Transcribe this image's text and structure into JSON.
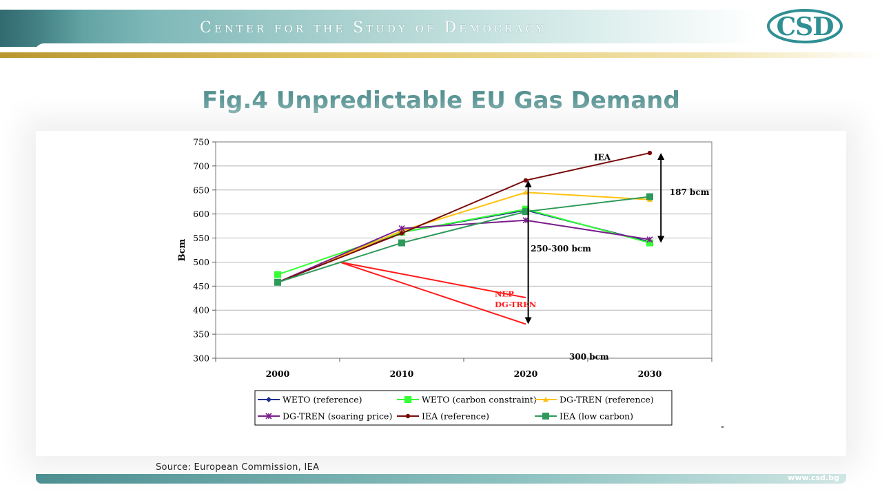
{
  "header": {
    "org_name": "Center for the Study of Democracy",
    "logo_text": "CSD"
  },
  "slide": {
    "title": "Fig.4 Unpredictable EU Gas Demand",
    "source": "Source: European Commission, IEA",
    "footer_url": "www.csd.bg",
    "stray_mark": "-"
  },
  "chart_data": {
    "type": "line",
    "title": "",
    "xlabel": "",
    "ylabel": "Bcm",
    "x": [
      2000,
      2010,
      2020,
      2030
    ],
    "x_ticks": [
      "2000",
      "2010",
      "2020",
      "2030"
    ],
    "y_ticks": [
      "750",
      "700",
      "650",
      "600",
      "550",
      "500",
      "450",
      "400",
      "350",
      "300"
    ],
    "ylim": [
      300,
      750
    ],
    "grid": true,
    "legend_placement": "bottom",
    "series": [
      {
        "name": "WETO (reference)",
        "color": "#1f2f8f",
        "marker": "diamond",
        "values": [
          458,
          562,
          608,
          542
        ]
      },
      {
        "name": "WETO (carbon constraint)",
        "color": "#33ff33",
        "marker": "square",
        "values": [
          474,
          562,
          610,
          540
        ]
      },
      {
        "name": "DG-TREN (reference)",
        "color": "#ffc20e",
        "marker": "triangle",
        "values": [
          458,
          565,
          645,
          630
        ]
      },
      {
        "name": "DG-TREN (soaring price)",
        "color": "#7b1f8c",
        "marker": "star",
        "values": [
          458,
          570,
          587,
          547
        ]
      },
      {
        "name": "IEA (reference)",
        "color": "#7a0a0a",
        "marker": "circle",
        "values": [
          458,
          560,
          670,
          727
        ]
      },
      {
        "name": "IEA (low carbon)",
        "color": "#2e9a5a",
        "marker": "square",
        "values": [
          458,
          540,
          605,
          636
        ]
      }
    ],
    "projections": [
      {
        "name": "NEP",
        "color": "#ff1a1a",
        "points": [
          [
            2005,
            500
          ],
          [
            2020,
            426
          ]
        ]
      },
      {
        "name": "DG-TREN",
        "color": "#ff1a1a",
        "points": [
          [
            2005,
            500
          ],
          [
            2020,
            371
          ]
        ]
      }
    ],
    "annotations": [
      {
        "text": "IEA",
        "x": 2025.5,
        "y": 712
      },
      {
        "text": "187 bcm",
        "x": 2031.6,
        "y": 640
      },
      {
        "text": "250-300 bcm",
        "x": 2020.4,
        "y": 522
      },
      {
        "text": "300 bcm",
        "x": 2023.5,
        "y": 297
      },
      {
        "text": "NEP",
        "x": 2017.5,
        "y": 428
      },
      {
        "text": "DG-TREN",
        "x": 2017.5,
        "y": 406
      }
    ],
    "range_arrows": [
      {
        "x": 2030.9,
        "y_from": 727,
        "y_to": 540
      },
      {
        "x": 2020.2,
        "y_from": 670,
        "y_to": 371
      }
    ]
  }
}
